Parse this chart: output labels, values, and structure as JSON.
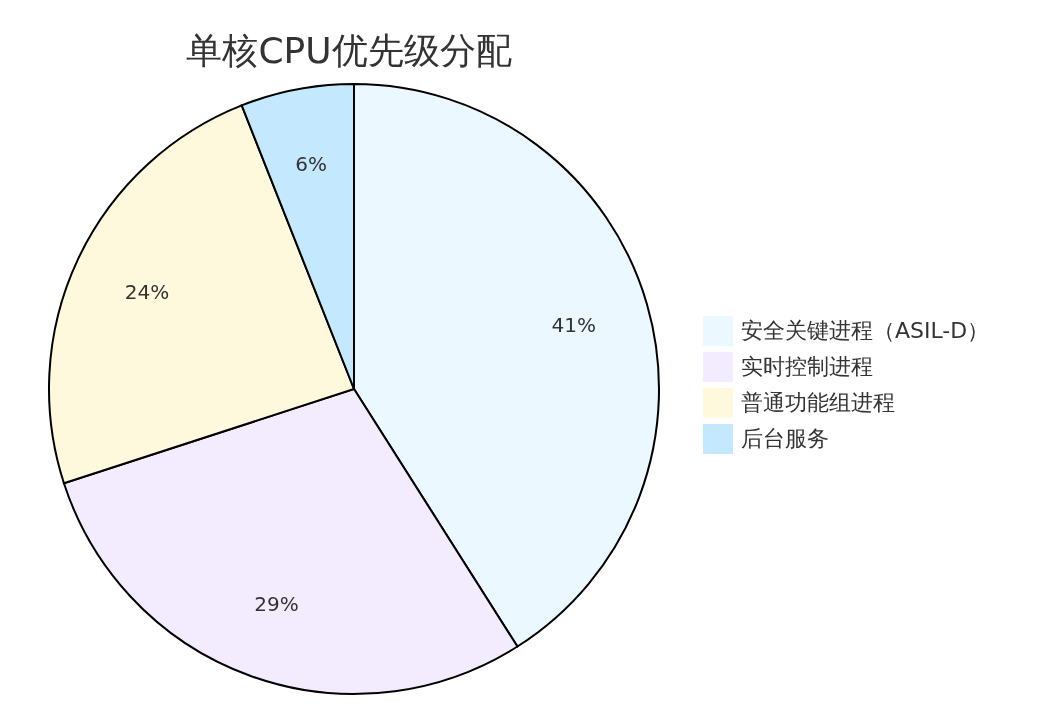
{
  "chart_data": {
    "type": "pie",
    "title": "单核CPU优先级分配",
    "categories": [
      "安全关键进程（ASIL-D）",
      "实时控制进程",
      "普通功能组进程",
      "后台服务"
    ],
    "values": [
      41,
      29,
      24,
      6
    ],
    "colors": [
      "#ecf8ff",
      "#f3ecff",
      "#fef8dd",
      "#c4e9ff"
    ],
    "value_labels": [
      "41%",
      "29%",
      "24%",
      "6%"
    ],
    "legend": "right"
  }
}
